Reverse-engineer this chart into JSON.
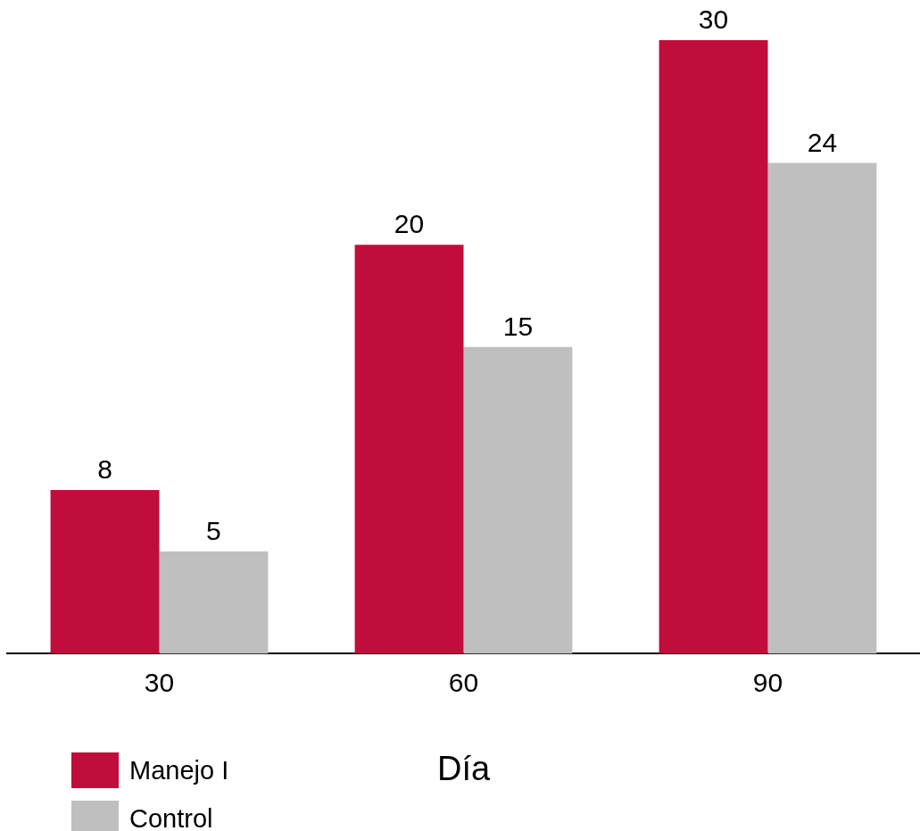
{
  "chart_data": {
    "type": "bar",
    "xlabel": "Día",
    "categories": [
      "30",
      "60",
      "90"
    ],
    "series": [
      {
        "name": "Manejo I",
        "color": "#c00d3c",
        "values": [
          8,
          20,
          30
        ]
      },
      {
        "name": "Control",
        "color": "#bfbfbf",
        "values": [
          5,
          15,
          24
        ]
      }
    ],
    "ylim": [
      0,
      30
    ],
    "tick_labels": "x",
    "grid": false,
    "legend": "bottom left",
    "data_labels": true
  }
}
